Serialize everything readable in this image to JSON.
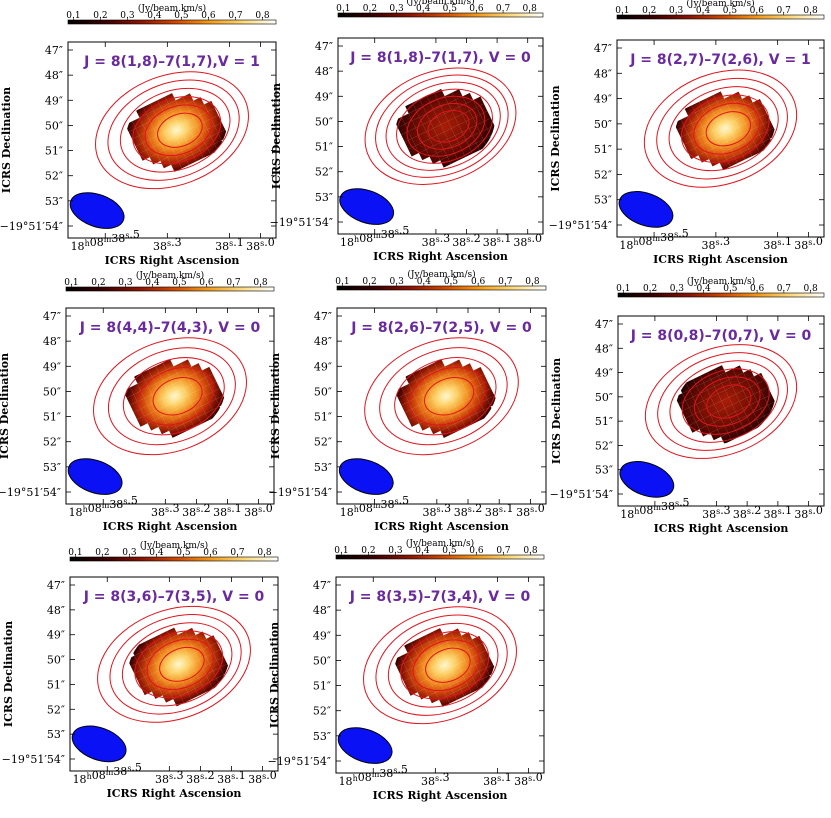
{
  "figure": {
    "colorbar_label": "(Jy/beam.km/s)",
    "colorbar_ticks": [
      "0.1",
      "0.2",
      "0.3",
      "0.4",
      "0.5",
      "0.6",
      "0.7",
      "0.8"
    ],
    "colorbar_range": [
      0.08,
      0.85
    ],
    "xlabel": "ICRS Right Ascension",
    "ylabel": "ICRS Declination",
    "dec_ticks": [
      "47″",
      "48″",
      "49″",
      "50″",
      "51″",
      "52″",
      "53″",
      "−19°51′54″"
    ],
    "ra_labels": {
      "first": "18h08m38s.5"
    },
    "colors": {
      "contour": "#e0141e",
      "beam": "#0a12f5",
      "title": "#6a2a9e",
      "beam_edge": "#000000"
    }
  },
  "chart_data": [
    {
      "type": "heatmap",
      "title": "J = 8(1,8)–7(1,7),V = 1",
      "xlabel": "ICRS Right Ascension",
      "ylabel": "ICRS Declination",
      "ra_ticks": [
        "18h08m38s.5",
        "38s.3",
        "38s.1",
        "38s.0"
      ],
      "ra_tick_seconds": [
        38.5,
        38.3,
        38.1,
        38.0
      ],
      "dec_ticks": [
        "47″",
        "48″",
        "49″",
        "50″",
        "51″",
        "52″",
        "53″",
        "−19°51′54″"
      ],
      "peak_jy": 0.85,
      "peak_offset": [
        38.25,
        49.8
      ],
      "contours": 6
    },
    {
      "type": "heatmap",
      "title": "J = 8(1,8)–7(1,7), V = 0",
      "xlabel": "ICRS Right Ascension",
      "ylabel": "ICRS Declination",
      "ra_ticks": [
        "18h08m38s.5",
        "38s.3",
        "38s.2",
        "38s.1",
        "38s.0"
      ],
      "ra_tick_seconds": [
        38.5,
        38.3,
        38.2,
        38.1,
        38.0
      ],
      "dec_ticks": [
        "47″",
        "48″",
        "49″",
        "50″",
        "51″",
        "52″",
        "53″",
        "−19°51′54″"
      ],
      "peak_jy": 0.25,
      "peak_offset": [
        38.22,
        49.8
      ],
      "contours": 7
    },
    {
      "type": "heatmap",
      "title": "J = 8(2,7)–7(2,6), V = 1",
      "xlabel": "ICRS Right Ascension",
      "ylabel": "ICRS Declination",
      "ra_ticks": [
        "18h08m38s.5",
        "38s.3",
        "38s.1",
        "38s.0"
      ],
      "ra_tick_seconds": [
        38.5,
        38.3,
        38.1,
        38.0
      ],
      "dec_ticks": [
        "47″",
        "48″",
        "49″",
        "50″",
        "51″",
        "52″",
        "53″",
        "−19°51′54″"
      ],
      "peak_jy": 0.8,
      "peak_offset": [
        38.25,
        49.9
      ],
      "contours": 6
    },
    {
      "type": "heatmap",
      "title": "J = 8(4,4)–7(4,3), V = 0",
      "xlabel": "ICRS Right Ascension",
      "ylabel": "ICRS Declination",
      "ra_ticks": [
        "18h08m38s.5",
        "38s.3",
        "38s.2",
        "38s.1",
        "38s.0"
      ],
      "ra_tick_seconds": [
        38.5,
        38.3,
        38.2,
        38.1,
        38.0
      ],
      "dec_ticks": [
        "47″",
        "48″",
        "49″",
        "50″",
        "51″",
        "52″",
        "53″",
        "−19°51′54″"
      ],
      "peak_jy": 0.85,
      "peak_offset": [
        38.24,
        49.9
      ],
      "contours": 5
    },
    {
      "type": "heatmap",
      "title": "J = 8(2,6)–7(2,5), V = 0",
      "xlabel": "ICRS Right Ascension",
      "ylabel": "ICRS Declination",
      "ra_ticks": [
        "18h08m38s.5",
        "38s.3",
        "38s.2",
        "38s.1",
        "38s.0"
      ],
      "ra_tick_seconds": [
        38.5,
        38.3,
        38.2,
        38.1,
        38.0
      ],
      "dec_ticks": [
        "47″",
        "48″",
        "49″",
        "50″",
        "51″",
        "52″",
        "53″",
        "−19°51′54″"
      ],
      "peak_jy": 0.85,
      "peak_offset": [
        38.23,
        49.9
      ],
      "contours": 5
    },
    {
      "type": "heatmap",
      "title": "J = 8(0,8)–7(0,7), V = 0",
      "xlabel": "ICRS Right Ascension",
      "ylabel": "ICRS Declination",
      "ra_ticks": [
        "18h08m38s.5",
        "38s.3",
        "38s.2",
        "38s.1",
        "38s.0"
      ],
      "ra_tick_seconds": [
        38.5,
        38.3,
        38.2,
        38.1,
        38.0
      ],
      "dec_ticks": [
        "47″",
        "48″",
        "49″",
        "50″",
        "51″",
        "52″",
        "53″",
        "−19°51′54″"
      ],
      "peak_jy": 0.25,
      "peak_offset": [
        38.22,
        49.8
      ],
      "contours": 6
    },
    {
      "type": "heatmap",
      "title": "J = 8(3,6)–7(3,5), V = 0",
      "xlabel": "ICRS Right Ascension",
      "ylabel": "ICRS Declination",
      "ra_ticks": [
        "18h08m38s.5",
        "38s.3",
        "38s.2",
        "38s.1",
        "38s.0"
      ],
      "ra_tick_seconds": [
        38.5,
        38.3,
        38.2,
        38.1,
        38.0
      ],
      "dec_ticks": [
        "47″",
        "48″",
        "49″",
        "50″",
        "51″",
        "52″",
        "53″",
        "−19°51′54″"
      ],
      "peak_jy": 0.85,
      "peak_offset": [
        38.22,
        50.2
      ],
      "contours": 6
    },
    {
      "type": "heatmap",
      "title": "J = 8(3,5)–7(3,4), V = 0",
      "xlabel": "ICRS Right Ascension",
      "ylabel": "ICRS Declination",
      "ra_ticks": [
        "18h08m38s.5",
        "38s.3",
        "38s.1",
        "38s.0"
      ],
      "ra_tick_seconds": [
        38.5,
        38.3,
        38.1,
        38.0
      ],
      "dec_ticks": [
        "47″",
        "48″",
        "49″",
        "50″",
        "51″",
        "52″",
        "53″",
        "−19°51′54″"
      ],
      "peak_jy": 0.85,
      "peak_offset": [
        38.25,
        50.3
      ],
      "contours": 6
    }
  ]
}
